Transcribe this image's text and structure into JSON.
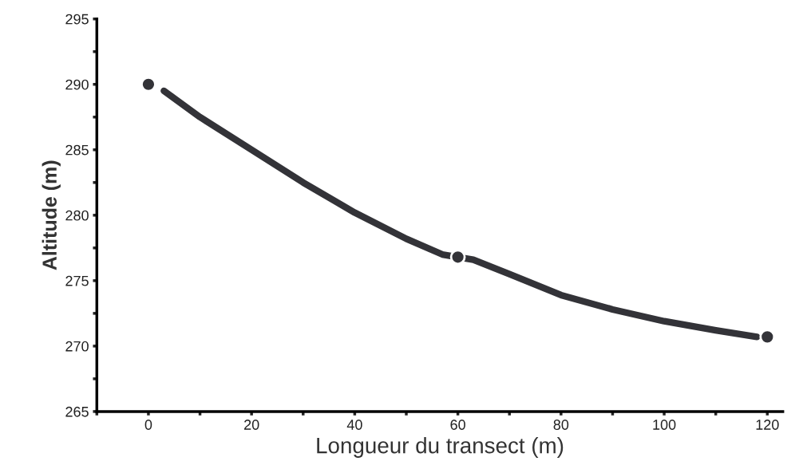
{
  "chart_data": {
    "type": "line",
    "xlabel": "Longueur du transect (m)",
    "ylabel": "Altitude (m)",
    "x": [
      0,
      60,
      120
    ],
    "series": [
      {
        "color": "#333338",
        "marker": "none",
        "x": [
          3,
          10,
          20,
          30,
          40,
          50,
          57,
          63,
          70,
          80,
          90,
          100,
          110,
          118
        ],
        "values": [
          289.5,
          287.5,
          285.0,
          282.5,
          280.2,
          278.2,
          277.0,
          276.6,
          275.5,
          273.9,
          272.8,
          271.9,
          271.2,
          270.7
        ]
      },
      {
        "type": "scatter",
        "color": "#333338",
        "marker": "circle",
        "values": [
          290.0,
          276.8,
          270.7
        ]
      }
    ],
    "xlim": [
      -10,
      123
    ],
    "ylim": [
      265,
      295
    ],
    "xticks": [
      {
        "value": -10,
        "label": null
      },
      0,
      {
        "value": 10,
        "label": null
      },
      20,
      {
        "value": 30,
        "label": null
      },
      40,
      {
        "value": 50,
        "label": null
      },
      60,
      {
        "value": 70,
        "label": null
      },
      80,
      {
        "value": 90,
        "label": null
      },
      100,
      {
        "value": 110,
        "label": null
      },
      120
    ],
    "yticks": [
      265,
      {
        "value": 267.5,
        "label": null
      },
      270,
      {
        "value": 272.5,
        "label": null
      },
      275,
      {
        "value": 277.5,
        "label": null
      },
      280,
      {
        "value": 282.5,
        "label": null
      },
      285,
      {
        "value": 287.5,
        "label": null
      },
      290,
      {
        "value": 292.5,
        "label": null
      },
      295
    ],
    "grid": false,
    "legend": false
  }
}
